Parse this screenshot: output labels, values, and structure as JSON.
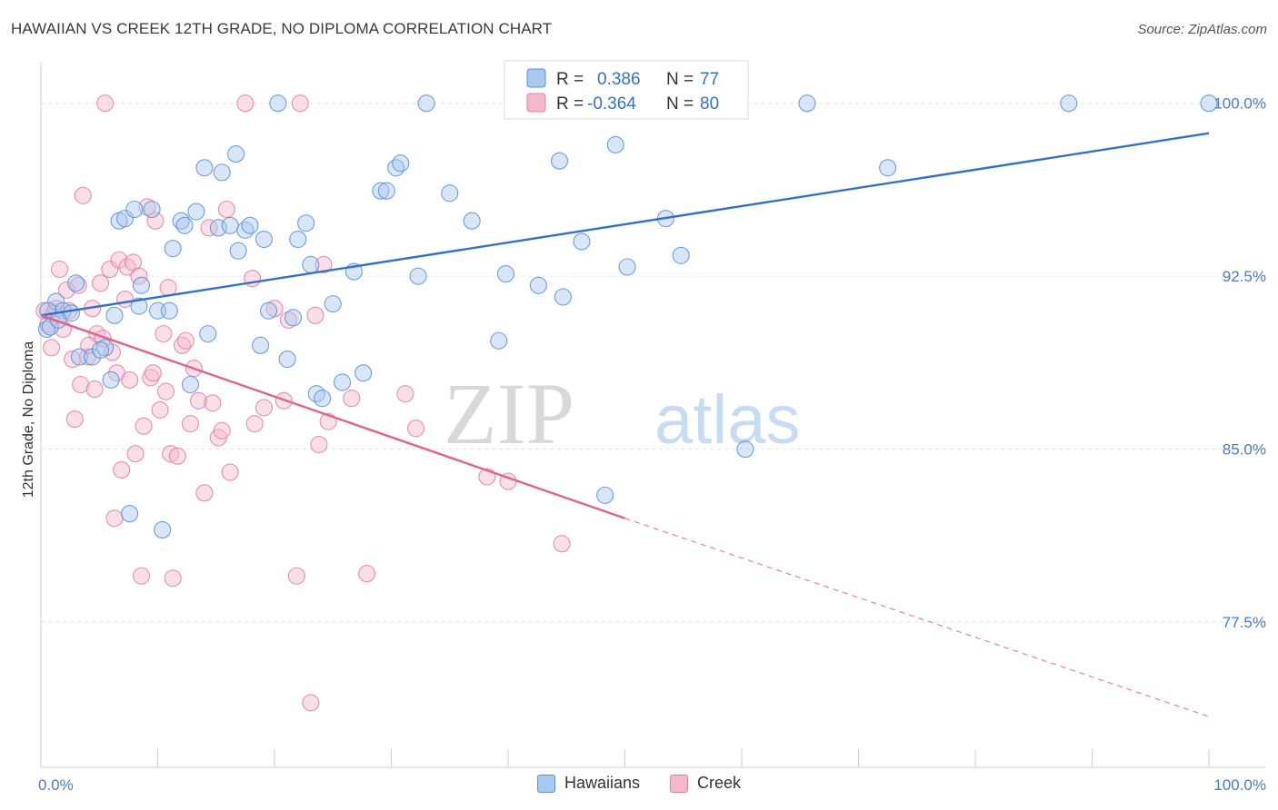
{
  "header": {
    "title": "HAWAIIAN VS CREEK 12TH GRADE, NO DIPLOMA CORRELATION CHART",
    "source": "Source: ZipAtlas.com"
  },
  "watermark": {
    "zip": "ZIP",
    "atlas": "atlas"
  },
  "colors": {
    "hawaiians_fill": "#a9c8f0",
    "hawaiians_stroke": "#5b8fd6",
    "hawaiians_line": "#3570c8",
    "creek_fill": "#f5b8cb",
    "creek_stroke": "#e27fa0",
    "creek_line": "#e0628f",
    "tick_label": "#4a7cc4"
  },
  "stats_legend": {
    "r_label": "R =",
    "n_label": "N =",
    "rows": [
      {
        "series": "Hawaiians",
        "r": "0.386",
        "n": "77"
      },
      {
        "series": "Creek",
        "r": "-0.364",
        "n": "80"
      }
    ]
  },
  "chart_data": {
    "type": "scatter",
    "title": "HAWAIIAN VS CREEK 12TH GRADE, NO DIPLOMA CORRELATION CHART",
    "xlabel": "",
    "ylabel": "12th Grade, No Diploma",
    "xlim": [
      0,
      100
    ],
    "ylim": [
      71.2,
      101.8
    ],
    "x_ticks": [
      "0.0%",
      "100.0%"
    ],
    "y_ticks": [
      {
        "value": 100.0,
        "label": "100.0%"
      },
      {
        "value": 92.5,
        "label": "92.5%"
      },
      {
        "value": 85.0,
        "label": "85.0%"
      },
      {
        "value": 77.5,
        "label": "77.5%"
      }
    ],
    "grid": true,
    "legend_position": "bottom-center",
    "series": [
      {
        "name": "Hawaiians",
        "trendline": {
          "x0": 0,
          "y0": 90.8,
          "x1": 100,
          "y1": 98.7,
          "dashed_beyond": null
        },
        "points": [
          [
            0.5,
            90.2
          ],
          [
            0.8,
            90.3
          ],
          [
            1.3,
            91.4
          ],
          [
            1.9,
            91.0
          ],
          [
            3.0,
            92.2
          ],
          [
            3.3,
            89.0
          ],
          [
            4.4,
            89.0
          ],
          [
            5.5,
            89.4
          ],
          [
            6.0,
            88.0
          ],
          [
            6.3,
            90.8
          ],
          [
            6.7,
            94.9
          ],
          [
            7.2,
            95.0
          ],
          [
            7.6,
            82.2
          ],
          [
            8.4,
            91.2
          ],
          [
            8.6,
            92.1
          ],
          [
            9.5,
            95.4
          ],
          [
            10.0,
            91.0
          ],
          [
            10.4,
            81.5
          ],
          [
            11.0,
            91.0
          ],
          [
            11.3,
            93.7
          ],
          [
            12.0,
            94.9
          ],
          [
            12.3,
            94.7
          ],
          [
            12.8,
            87.8
          ],
          [
            13.3,
            95.3
          ],
          [
            14.0,
            97.2
          ],
          [
            14.3,
            90.0
          ],
          [
            15.2,
            94.6
          ],
          [
            15.5,
            97.0
          ],
          [
            16.2,
            94.7
          ],
          [
            16.7,
            97.8
          ],
          [
            16.9,
            93.6
          ],
          [
            17.5,
            94.5
          ],
          [
            17.9,
            94.7
          ],
          [
            18.8,
            89.5
          ],
          [
            19.1,
            94.1
          ],
          [
            19.5,
            91.0
          ],
          [
            20.3,
            100.0
          ],
          [
            21.1,
            88.9
          ],
          [
            21.6,
            90.7
          ],
          [
            22.0,
            94.1
          ],
          [
            22.7,
            94.8
          ],
          [
            23.1,
            93.0
          ],
          [
            23.6,
            87.4
          ],
          [
            24.1,
            87.2
          ],
          [
            25.0,
            91.3
          ],
          [
            25.8,
            87.9
          ],
          [
            26.8,
            92.7
          ],
          [
            27.6,
            88.3
          ],
          [
            29.1,
            96.2
          ],
          [
            29.6,
            96.2
          ],
          [
            30.4,
            97.2
          ],
          [
            30.8,
            97.4
          ],
          [
            32.3,
            92.5
          ],
          [
            33.0,
            100.0
          ],
          [
            35.0,
            96.1
          ],
          [
            36.9,
            94.9
          ],
          [
            39.2,
            89.7
          ],
          [
            39.8,
            92.6
          ],
          [
            42.6,
            92.1
          ],
          [
            44.4,
            97.5
          ],
          [
            44.7,
            91.6
          ],
          [
            46.3,
            94.0
          ],
          [
            48.3,
            83.0
          ],
          [
            49.2,
            98.2
          ],
          [
            50.2,
            92.9
          ],
          [
            53.5,
            95.0
          ],
          [
            54.8,
            93.4
          ],
          [
            60.3,
            85.0
          ],
          [
            65.6,
            100.0
          ],
          [
            72.5,
            97.2
          ],
          [
            88.0,
            100.0
          ],
          [
            100.0,
            100.0
          ],
          [
            0.6,
            91.0
          ],
          [
            1.5,
            90.6
          ],
          [
            2.6,
            90.9
          ],
          [
            5.1,
            89.3
          ],
          [
            8.0,
            95.4
          ]
        ]
      },
      {
        "name": "Creek",
        "trendline": {
          "x0": 0,
          "y0": 90.8,
          "x1": 50,
          "y1": 82.0,
          "dashed_to": {
            "x": 100,
            "y": 73.4
          }
        },
        "points": [
          [
            0.3,
            91.0
          ],
          [
            0.6,
            90.4
          ],
          [
            0.9,
            89.4
          ],
          [
            1.1,
            90.9
          ],
          [
            1.3,
            91.1
          ],
          [
            1.6,
            92.8
          ],
          [
            1.9,
            90.2
          ],
          [
            2.2,
            91.9
          ],
          [
            2.4,
            91.0
          ],
          [
            2.7,
            88.9
          ],
          [
            2.9,
            86.3
          ],
          [
            3.2,
            92.1
          ],
          [
            3.4,
            87.8
          ],
          [
            3.6,
            96.0
          ],
          [
            4.0,
            89.0
          ],
          [
            4.4,
            91.1
          ],
          [
            4.6,
            87.6
          ],
          [
            4.8,
            90.0
          ],
          [
            5.1,
            92.2
          ],
          [
            5.3,
            89.8
          ],
          [
            5.5,
            100.0
          ],
          [
            5.9,
            92.8
          ],
          [
            6.1,
            89.2
          ],
          [
            6.3,
            82.0
          ],
          [
            6.5,
            88.3
          ],
          [
            6.7,
            93.2
          ],
          [
            6.9,
            84.1
          ],
          [
            7.2,
            91.5
          ],
          [
            7.4,
            92.9
          ],
          [
            7.6,
            88.0
          ],
          [
            7.9,
            93.1
          ],
          [
            8.1,
            84.8
          ],
          [
            8.4,
            92.5
          ],
          [
            8.6,
            79.5
          ],
          [
            8.8,
            86.0
          ],
          [
            9.1,
            95.5
          ],
          [
            9.4,
            88.1
          ],
          [
            9.8,
            94.9
          ],
          [
            10.2,
            86.7
          ],
          [
            10.5,
            90.0
          ],
          [
            10.7,
            87.5
          ],
          [
            10.9,
            92.0
          ],
          [
            11.1,
            84.8
          ],
          [
            11.3,
            79.4
          ],
          [
            11.7,
            84.7
          ],
          [
            12.1,
            89.5
          ],
          [
            12.4,
            89.7
          ],
          [
            12.8,
            86.1
          ],
          [
            13.1,
            88.5
          ],
          [
            13.5,
            87.1
          ],
          [
            14.0,
            83.1
          ],
          [
            14.4,
            94.6
          ],
          [
            14.7,
            87.0
          ],
          [
            15.2,
            85.5
          ],
          [
            15.5,
            85.8
          ],
          [
            15.9,
            95.4
          ],
          [
            16.2,
            84.0
          ],
          [
            17.5,
            100.0
          ],
          [
            18.1,
            92.4
          ],
          [
            18.3,
            86.1
          ],
          [
            19.1,
            86.8
          ],
          [
            20.0,
            91.1
          ],
          [
            20.8,
            87.1
          ],
          [
            21.9,
            79.5
          ],
          [
            22.2,
            100.0
          ],
          [
            23.1,
            74.0
          ],
          [
            23.5,
            90.8
          ],
          [
            23.8,
            85.2
          ],
          [
            24.2,
            93.0
          ],
          [
            24.6,
            86.2
          ],
          [
            26.6,
            87.2
          ],
          [
            27.9,
            79.6
          ],
          [
            31.2,
            87.4
          ],
          [
            32.1,
            85.9
          ],
          [
            38.2,
            83.8
          ],
          [
            40.0,
            83.6
          ],
          [
            44.6,
            80.9
          ],
          [
            4.1,
            89.5
          ],
          [
            9.6,
            88.3
          ],
          [
            21.2,
            90.6
          ]
        ]
      }
    ]
  },
  "bottom_legend": [
    {
      "label": "Hawaiians"
    },
    {
      "label": "Creek"
    }
  ]
}
